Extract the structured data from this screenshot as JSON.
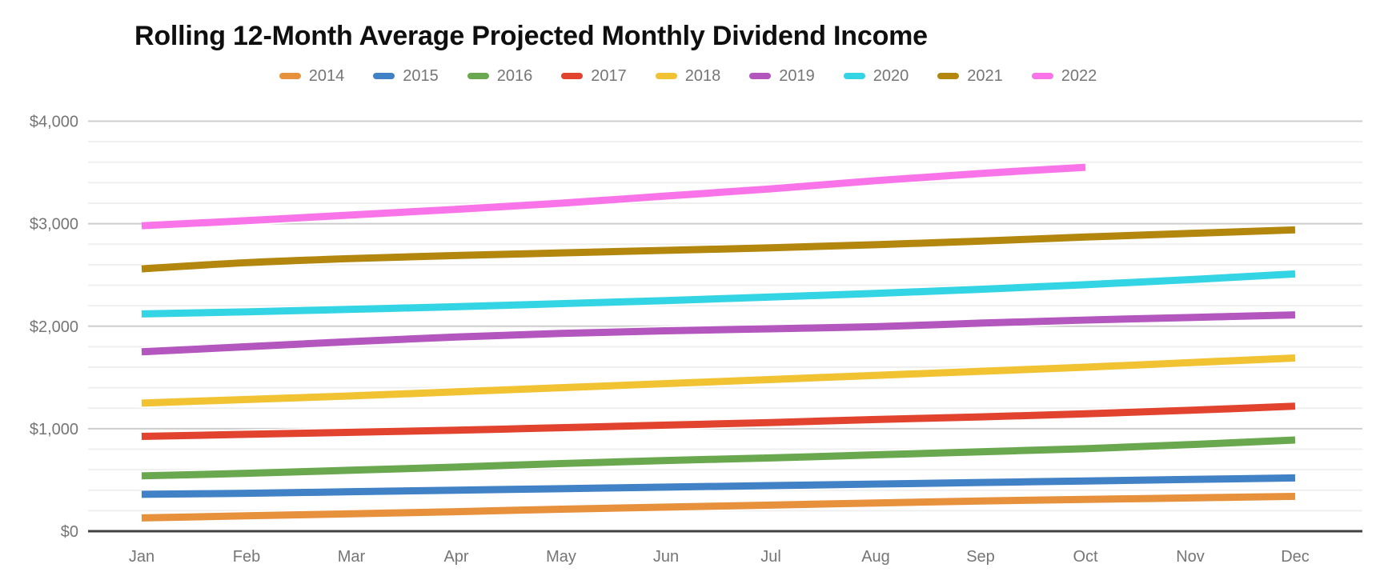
{
  "chart_data": {
    "type": "line",
    "title": "Rolling 12-Month Average Projected Monthly Dividend Income",
    "x_categories": [
      "Jan",
      "Feb",
      "Mar",
      "Apr",
      "May",
      "Jun",
      "Jul",
      "Aug",
      "Sep",
      "Oct",
      "Nov",
      "Dec"
    ],
    "y_ticks": [
      {
        "value": 0,
        "label": "$0"
      },
      {
        "value": 1000,
        "label": "$1,000"
      },
      {
        "value": 2000,
        "label": "$2,000"
      },
      {
        "value": 3000,
        "label": "$3,000"
      },
      {
        "value": 4000,
        "label": "$4,000"
      }
    ],
    "ylim": [
      0,
      4000
    ],
    "y_minor_step": 200,
    "y_major_step": 1000,
    "grid": true,
    "legend_position": "top",
    "series": [
      {
        "name": "2014",
        "color": "#E8913C",
        "values": [
          130,
          150,
          170,
          190,
          215,
          235,
          255,
          275,
          295,
          310,
          325,
          340
        ]
      },
      {
        "name": "2015",
        "color": "#4181C6",
        "values": [
          360,
          370,
          385,
          400,
          415,
          430,
          445,
          460,
          475,
          490,
          505,
          520
        ]
      },
      {
        "name": "2016",
        "color": "#6AA84F",
        "values": [
          540,
          565,
          595,
          625,
          660,
          690,
          715,
          745,
          775,
          805,
          845,
          890
        ]
      },
      {
        "name": "2017",
        "color": "#E2432E",
        "values": [
          925,
          945,
          965,
          985,
          1010,
          1035,
          1060,
          1090,
          1115,
          1145,
          1180,
          1220
        ]
      },
      {
        "name": "2018",
        "color": "#F1C232",
        "values": [
          1250,
          1285,
          1320,
          1360,
          1400,
          1440,
          1480,
          1520,
          1560,
          1600,
          1645,
          1690
        ]
      },
      {
        "name": "2019",
        "color": "#B356BE",
        "values": [
          1750,
          1800,
          1850,
          1895,
          1930,
          1955,
          1975,
          1995,
          2030,
          2060,
          2085,
          2110
        ]
      },
      {
        "name": "2020",
        "color": "#33D4E3",
        "values": [
          2120,
          2140,
          2165,
          2190,
          2220,
          2250,
          2285,
          2320,
          2360,
          2405,
          2455,
          2510
        ]
      },
      {
        "name": "2021",
        "color": "#B3870E",
        "values": [
          2560,
          2620,
          2660,
          2690,
          2715,
          2740,
          2765,
          2795,
          2830,
          2870,
          2905,
          2940
        ]
      },
      {
        "name": "2022",
        "color": "#F974E8",
        "values": [
          2980,
          3030,
          3085,
          3140,
          3200,
          3270,
          3340,
          3420,
          3490,
          3550
        ]
      }
    ],
    "style": {
      "axis_color": "#424242",
      "tick_text_color": "#757575",
      "minor_grid_color": "#EFEFEF",
      "major_grid_color": "#CDCDCD",
      "line_width": 9
    }
  }
}
